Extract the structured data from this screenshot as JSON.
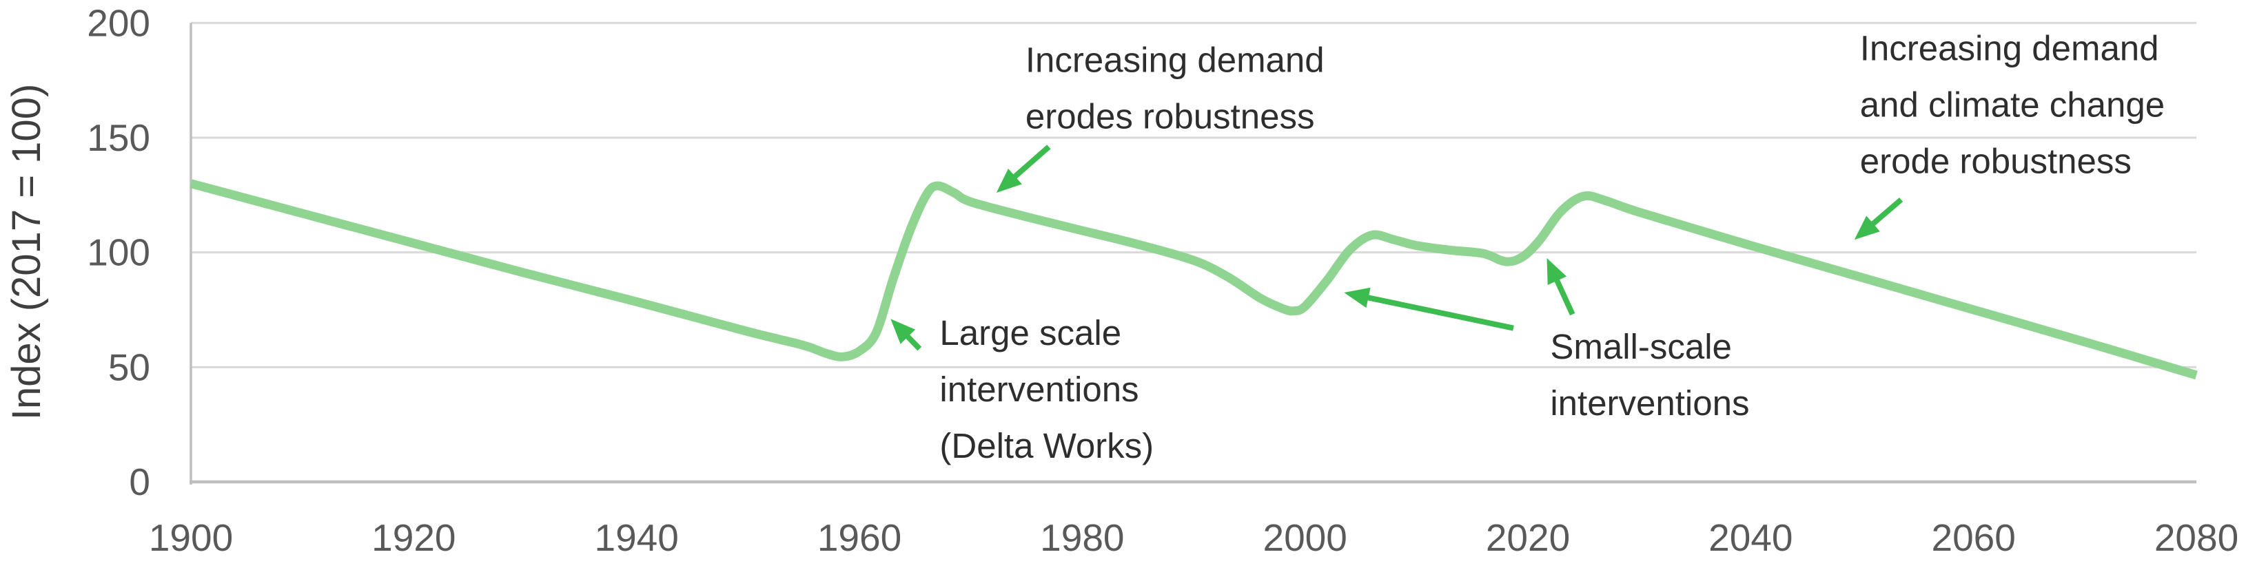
{
  "chart_data": {
    "type": "line",
    "title": "",
    "xlabel": "",
    "ylabel": "Index (2017 = 100)",
    "xlim": [
      1900,
      2080
    ],
    "ylim": [
      0,
      200
    ],
    "x_ticks": [
      1900,
      1920,
      1940,
      1960,
      1980,
      2000,
      2020,
      2040,
      2060,
      2080
    ],
    "y_ticks": [
      0,
      50,
      100,
      150,
      200
    ],
    "grid": "horizontal",
    "legend": "none",
    "series": [
      {
        "name": "flood-robustness-index",
        "points": [
          [
            1900,
            130
          ],
          [
            1910,
            117
          ],
          [
            1920,
            104
          ],
          [
            1930,
            91
          ],
          [
            1940,
            78.5
          ],
          [
            1950,
            65.5
          ],
          [
            1955,
            59.5
          ],
          [
            1957,
            56
          ],
          [
            1958.5,
            54.5
          ],
          [
            1960,
            57
          ],
          [
            1961.5,
            65
          ],
          [
            1963,
            88
          ],
          [
            1964.5,
            109
          ],
          [
            1966,
            125
          ],
          [
            1967,
            129
          ],
          [
            1968.5,
            126
          ],
          [
            1970,
            122
          ],
          [
            1975,
            115.5
          ],
          [
            1980,
            109.5
          ],
          [
            1985,
            103.5
          ],
          [
            1990,
            96.5
          ],
          [
            1993,
            89.5
          ],
          [
            1996,
            80
          ],
          [
            1998,
            75.5
          ],
          [
            1999,
            74.5
          ],
          [
            2000,
            76.5
          ],
          [
            2002,
            88
          ],
          [
            2004,
            101
          ],
          [
            2006,
            107.5
          ],
          [
            2008,
            105.5
          ],
          [
            2010,
            103
          ],
          [
            2013,
            101
          ],
          [
            2016,
            99.5
          ],
          [
            2018,
            96
          ],
          [
            2019.5,
            98
          ],
          [
            2021,
            105
          ],
          [
            2023,
            118
          ],
          [
            2025,
            124.5
          ],
          [
            2027,
            122.5
          ],
          [
            2030,
            117.5
          ],
          [
            2040,
            103
          ],
          [
            2050,
            89
          ],
          [
            2060,
            75
          ],
          [
            2070,
            61
          ],
          [
            2080,
            46.5
          ]
        ]
      }
    ],
    "annotations": [
      {
        "id": "increasing-demand-1960s",
        "lines": [
          "Increasing demand",
          "erodes robustness"
        ],
        "x": 1974.9,
        "y": 191
      },
      {
        "id": "large-scale-interventions",
        "lines": [
          "Large scale",
          "interventions",
          "(Delta Works)"
        ],
        "x": 1967.2,
        "y": 72
      },
      {
        "id": "small-scale-interventions",
        "lines": [
          "Small-scale",
          "interventions"
        ],
        "x": 2022.0,
        "y": 66
      },
      {
        "id": "increasing-demand-climate-change",
        "lines": [
          "Increasing demand",
          "and climate change",
          "erode robustness"
        ],
        "x": 2049.8,
        "y": 196
      }
    ],
    "arrows": [
      {
        "name": "arrow-to-1970s-decline",
        "from": [
          1977.0,
          146.0
        ],
        "to": [
          1972.3,
          126.0
        ]
      },
      {
        "name": "arrow-to-1960s-rise",
        "from": [
          1965.4,
          58.0
        ],
        "to": [
          1962.8,
          71.0
        ]
      },
      {
        "name": "arrow-to-2003-rise",
        "from": [
          2018.7,
          67.0
        ],
        "to": [
          2003.5,
          82.5
        ]
      },
      {
        "name": "arrow-to-2020-rise",
        "from": [
          2024.0,
          73.0
        ],
        "to": [
          2021.7,
          97.5
        ]
      },
      {
        "name": "arrow-to-2050-decline",
        "from": [
          2053.5,
          123.0
        ],
        "to": [
          2049.3,
          105.5
        ]
      }
    ],
    "colors": {
      "series_line": "#90d492",
      "arrow": "#3cbb4e",
      "gridline": "#d9d9d9",
      "axis_line": "#bfbfbf",
      "tick_text": "#595959",
      "axis_title_text": "#3f3f3f",
      "annotation_text": "#2e2e2e",
      "background": "#ffffff"
    }
  }
}
